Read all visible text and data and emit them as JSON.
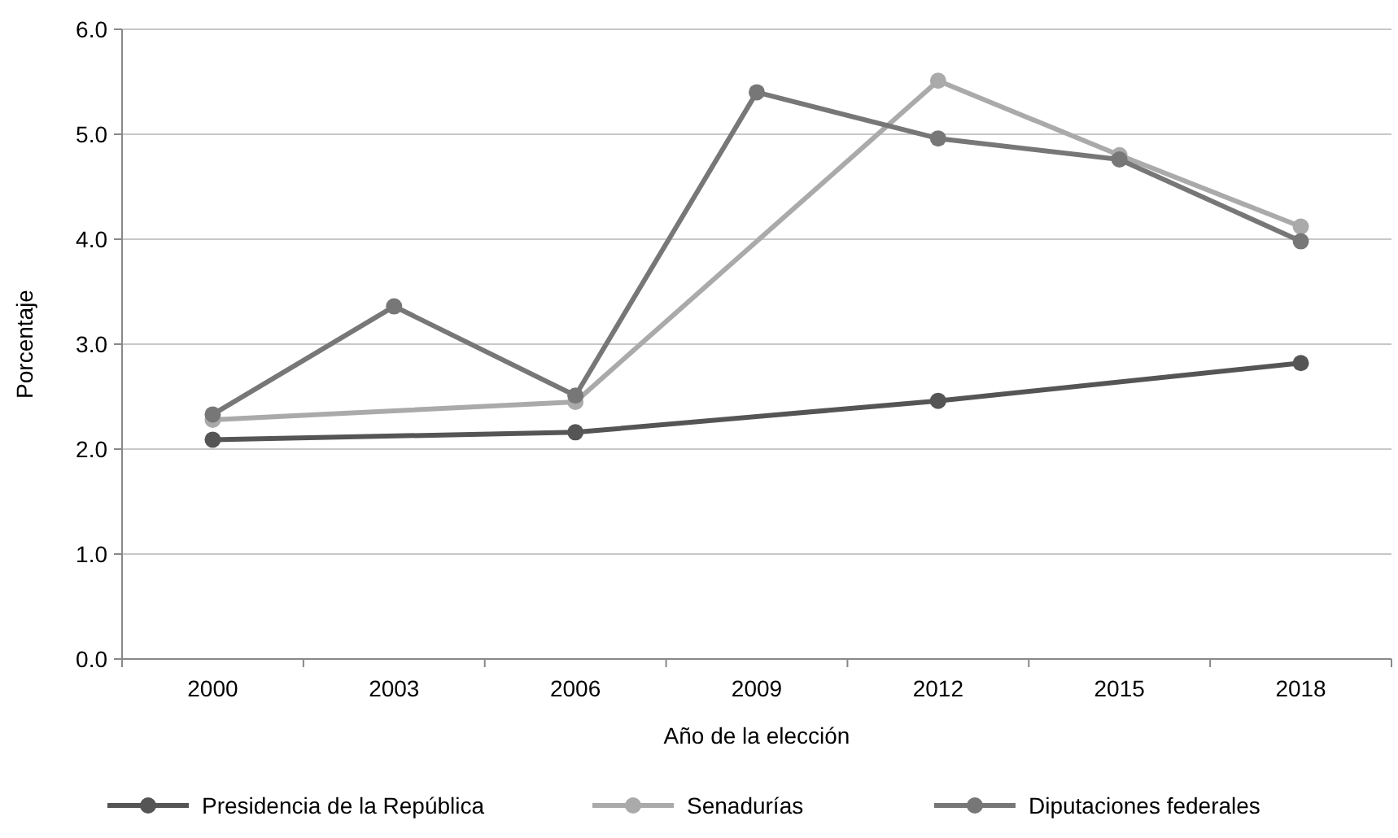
{
  "chart_data": {
    "type": "line",
    "xlabel": "Año de la elección",
    "ylabel": "Porcentaje",
    "categories": [
      "2000",
      "2003",
      "2006",
      "2009",
      "2012",
      "2015",
      "2018"
    ],
    "series": [
      {
        "name": "Presidencia de la República",
        "color": "#555555",
        "values": [
          2.09,
          null,
          2.16,
          null,
          2.46,
          null,
          2.82
        ]
      },
      {
        "name": "Senadurías",
        "color": "#aaaaaa",
        "values": [
          2.28,
          null,
          2.45,
          null,
          5.51,
          4.8,
          4.12
        ]
      },
      {
        "name": "Diputaciones federales",
        "color": "#777777",
        "values": [
          2.33,
          3.36,
          2.51,
          5.4,
          4.96,
          4.76,
          3.98
        ]
      }
    ],
    "ylim": [
      0,
      6
    ],
    "yticks": [
      {
        "value": 0,
        "label": "0.0"
      },
      {
        "value": 1,
        "label": "1.0"
      },
      {
        "value": 2,
        "label": "2.0"
      },
      {
        "value": 3,
        "label": "3.0"
      },
      {
        "value": 4,
        "label": "4.0"
      },
      {
        "value": 5,
        "label": "5.0"
      },
      {
        "value": 6,
        "label": "6.0"
      }
    ],
    "grid": "y",
    "legend": "bottom",
    "marker": "circle",
    "line_style": "solid"
  }
}
